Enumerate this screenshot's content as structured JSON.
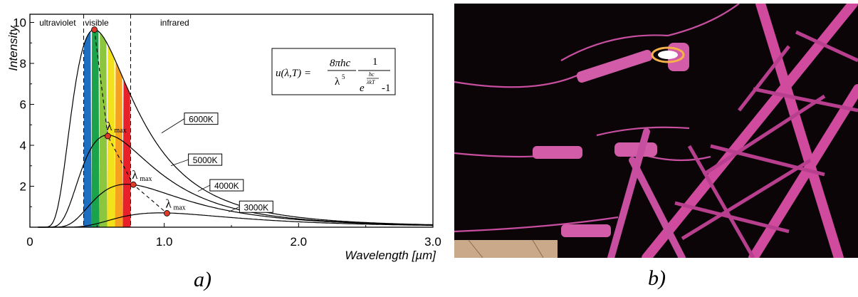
{
  "chart_data": {
    "type": "line",
    "xlabel": "Wavelength [µm]",
    "ylabel": "Intensity",
    "xlim": [
      0,
      3.0
    ],
    "ylim": [
      0,
      10.4
    ],
    "x_ticks": [
      0,
      1.0,
      2.0,
      3.0
    ],
    "x_tick_labels": [
      "0",
      "1.0",
      "2.0",
      "3.0"
    ],
    "y_ticks": [
      2,
      4,
      6,
      8,
      10
    ],
    "y_tick_labels": [
      "2",
      "4",
      "6",
      "8",
      "10"
    ],
    "regions": [
      {
        "label": "ultraviolet",
        "x_end": 0.4
      },
      {
        "label": "visible",
        "x_start": 0.4,
        "x_end": 0.75
      },
      {
        "label": "infrared",
        "x_start": 0.75
      }
    ],
    "spectrum_colors": [
      "#1e6fbf",
      "#1aa34a",
      "#8cc63f",
      "#f2e21b",
      "#f6a21e",
      "#e8202a"
    ],
    "series": [
      {
        "name": "6000K",
        "temperature": 6000,
        "peak": [
          0.48,
          9.65
        ]
      },
      {
        "name": "5000K",
        "temperature": 5000,
        "peak": [
          0.58,
          4.5
        ]
      },
      {
        "name": "4000K",
        "temperature": 4000,
        "peak": [
          0.72,
          2.1
        ]
      },
      {
        "name": "3000K",
        "temperature": 3000,
        "peak": [
          0.97,
          0.7
        ]
      }
    ],
    "wien_points": [
      {
        "x": 0.58,
        "y": 4.45,
        "label": "λ",
        "sub": "max"
      },
      {
        "x": 0.77,
        "y": 2.08,
        "label": "λ",
        "sub": "max"
      },
      {
        "x": 1.02,
        "y": 0.68,
        "label": "λ",
        "sub": "max"
      }
    ],
    "formula": {
      "lhs": "u(λ,T) =",
      "numerator": "8πhc",
      "denominator": "λ",
      "denominator_exp": "5",
      "num2": "1",
      "exp_base": "e",
      "exp_num": "hc",
      "exp_den": "λkT",
      "minus_one": "-1"
    }
  },
  "panels": {
    "a_label": "a)",
    "b_label": "b)"
  }
}
